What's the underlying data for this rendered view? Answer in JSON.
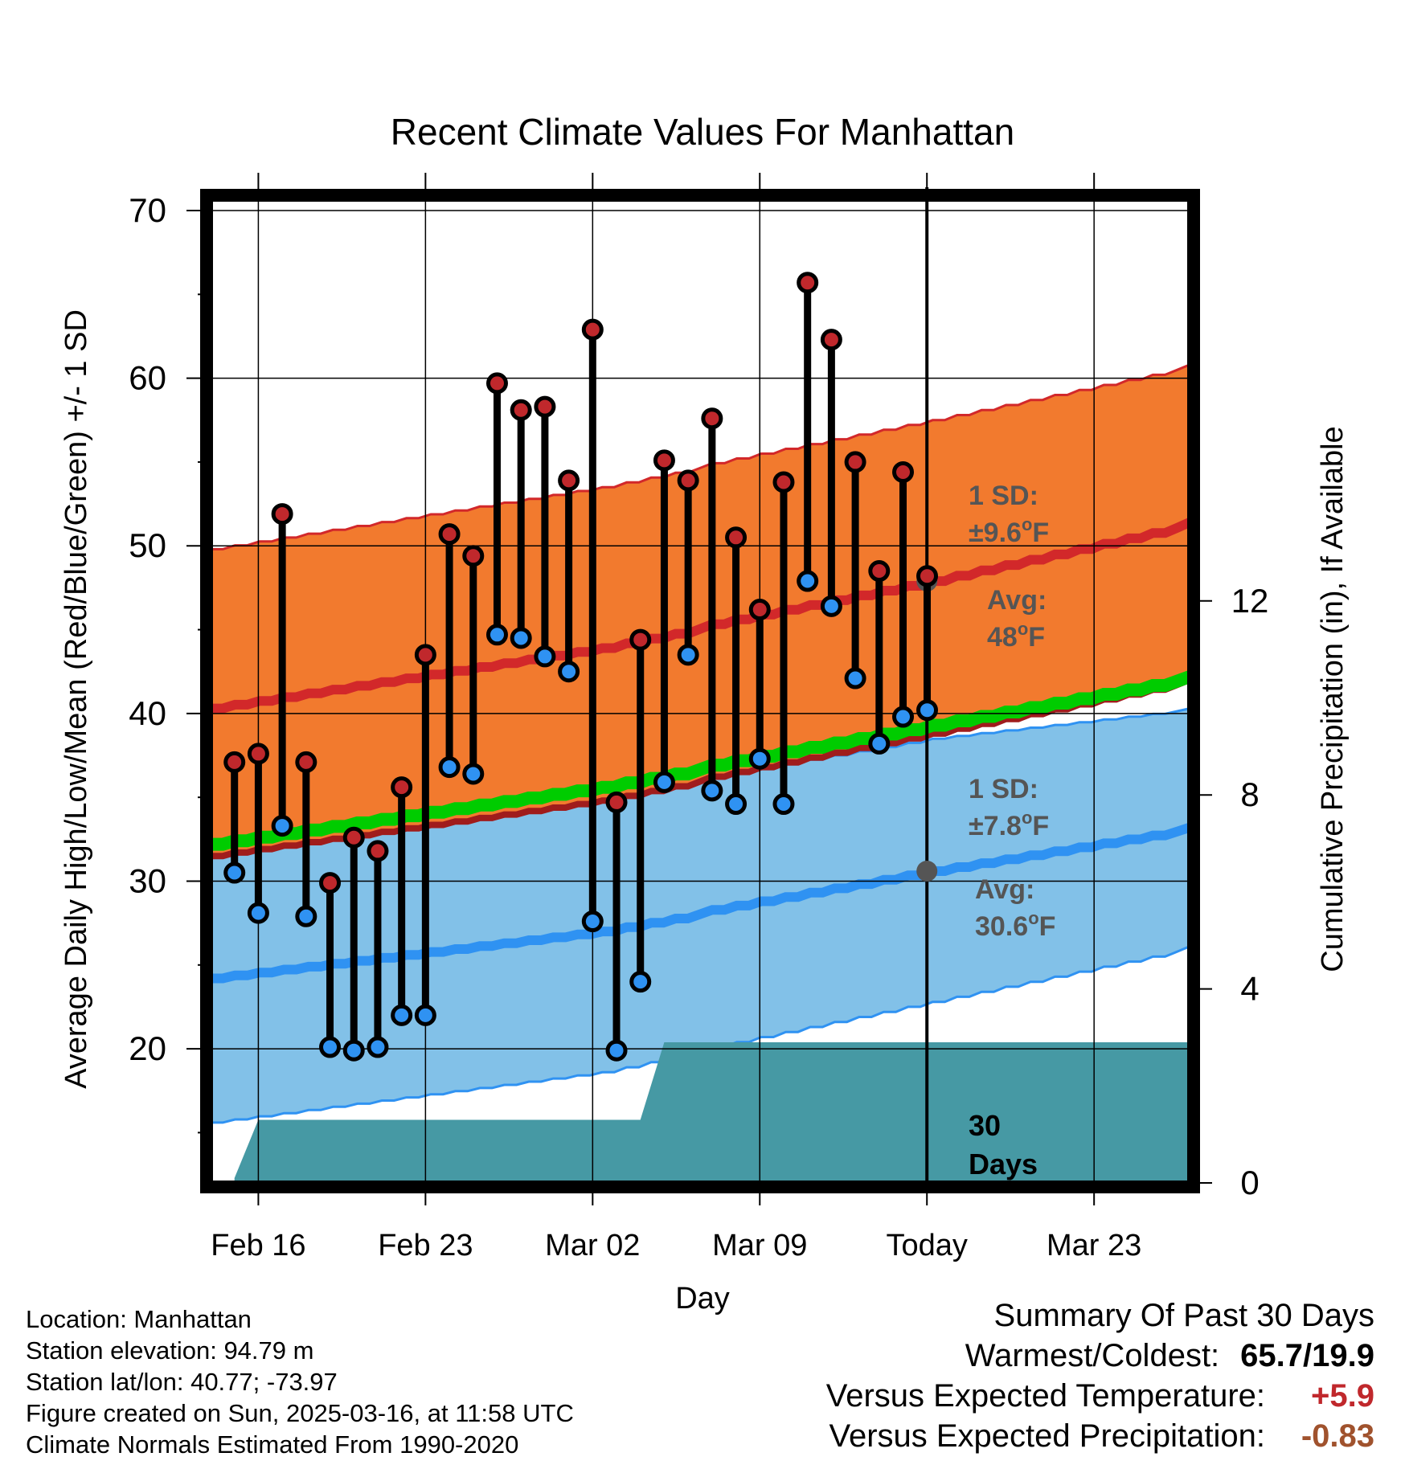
{
  "chart_data": {
    "type": "line",
    "title": "Recent Climate Values For Manhattan",
    "xlabel": "Day",
    "ylabel": "Average Daily High/Low/Mean (Red/Blue/Green) +/- 1 SD",
    "ylabel_right": "Cumulative Precipitation (in), If Available",
    "x_domain": [
      "2025-02-14",
      "2025-03-27"
    ],
    "ylim": [
      12,
      70
    ],
    "y2lim": [
      0,
      20
    ],
    "y_ticks": [
      20,
      30,
      40,
      50,
      60,
      70
    ],
    "y2_ticks": [
      0,
      4,
      8,
      12
    ],
    "x_ticks": [
      {
        "date": "2025-02-16",
        "label": "Feb 16"
      },
      {
        "date": "2025-02-23",
        "label": "Feb 23"
      },
      {
        "date": "2025-03-02",
        "label": "Mar 02"
      },
      {
        "date": "2025-03-09",
        "label": "Mar 09"
      },
      {
        "date": "2025-03-16",
        "label": "Today"
      },
      {
        "date": "2025-03-23",
        "label": "Mar 23"
      }
    ],
    "today": "2025-03-16",
    "grid": true,
    "normals": {
      "high_avg": {
        "dates": [
          "2025-02-14",
          "2025-03-02",
          "2025-03-16",
          "2025-03-27"
        ],
        "values": [
          40.3,
          43.9,
          47.9,
          51.4
        ]
      },
      "high_upper": {
        "dates": [
          "2025-02-14",
          "2025-03-02",
          "2025-03-16",
          "2025-03-27"
        ],
        "values": [
          49.8,
          53.5,
          57.5,
          60.8
        ]
      },
      "high_lower": {
        "dates": [
          "2025-02-14",
          "2025-03-02",
          "2025-03-16",
          "2025-03-27"
        ],
        "values": [
          31.5,
          34.8,
          38.8,
          42.0
        ]
      },
      "low_avg": {
        "dates": [
          "2025-02-14",
          "2025-03-02",
          "2025-03-16",
          "2025-03-27"
        ],
        "values": [
          24.2,
          27.0,
          30.6,
          33.2
        ]
      },
      "low_upper": {
        "dates": [
          "2025-02-14",
          "2025-03-02",
          "2025-03-16",
          "2025-03-27"
        ],
        "values": [
          32.8,
          35.0,
          38.5,
          40.3
        ]
      },
      "low_lower": {
        "dates": [
          "2025-02-14",
          "2025-03-02",
          "2025-03-16",
          "2025-03-27"
        ],
        "values": [
          15.6,
          18.6,
          22.8,
          26.1
        ]
      },
      "mean_avg": {
        "dates": [
          "2025-02-14",
          "2025-03-02",
          "2025-03-16",
          "2025-03-27"
        ],
        "values": [
          32.2,
          35.6,
          39.3,
          42.2
        ]
      }
    },
    "series": [
      {
        "name": "High",
        "color": "#c0282c",
        "dates": [
          "2025-02-15",
          "2025-02-16",
          "2025-02-17",
          "2025-02-18",
          "2025-02-19",
          "2025-02-20",
          "2025-02-21",
          "2025-02-22",
          "2025-02-23",
          "2025-02-24",
          "2025-02-25",
          "2025-02-26",
          "2025-02-27",
          "2025-02-28",
          "2025-03-01",
          "2025-03-02",
          "2025-03-03",
          "2025-03-04",
          "2025-03-05",
          "2025-03-06",
          "2025-03-07",
          "2025-03-08",
          "2025-03-09",
          "2025-03-10",
          "2025-03-11",
          "2025-03-12",
          "2025-03-13",
          "2025-03-14",
          "2025-03-15"
        ],
        "values": [
          37.1,
          37.6,
          51.9,
          37.1,
          29.9,
          32.6,
          31.8,
          35.6,
          43.5,
          50.7,
          49.4,
          59.7,
          58.1,
          58.3,
          53.9,
          62.9,
          34.7,
          44.4,
          55.1,
          53.9,
          57.6,
          50.5,
          46.2,
          53.8,
          65.7,
          62.3,
          55.0,
          48.5,
          54.4
        ]
      },
      {
        "name": "Low",
        "color": "#2f92f2",
        "dates": [
          "2025-02-15",
          "2025-02-16",
          "2025-02-17",
          "2025-02-18",
          "2025-02-19",
          "2025-02-20",
          "2025-02-21",
          "2025-02-22",
          "2025-02-23",
          "2025-02-24",
          "2025-02-25",
          "2025-02-26",
          "2025-02-27",
          "2025-02-28",
          "2025-03-01",
          "2025-03-02",
          "2025-03-03",
          "2025-03-04",
          "2025-03-05",
          "2025-03-06",
          "2025-03-07",
          "2025-03-08",
          "2025-03-09",
          "2025-03-10",
          "2025-03-11",
          "2025-03-12",
          "2025-03-13",
          "2025-03-14",
          "2025-03-15"
        ],
        "values": [
          30.5,
          28.1,
          33.3,
          27.9,
          20.1,
          19.9,
          20.1,
          22.0,
          22.0,
          36.8,
          36.4,
          44.7,
          44.5,
          43.4,
          42.5,
          27.6,
          19.9,
          24.0,
          35.9,
          43.5,
          35.4,
          34.6,
          37.3,
          34.6,
          47.9,
          46.4,
          42.1,
          38.2,
          39.8
        ]
      },
      {
        "name": "Precipitation",
        "color": "#4699a4",
        "dates": [
          "2025-02-14",
          "2025-02-15",
          "2025-02-15",
          "2025-02-16",
          "2025-03-04",
          "2025-03-05",
          "2025-03-27"
        ],
        "values": [
          0,
          0,
          0.1,
          1.3,
          1.3,
          2.9,
          2.9
        ]
      }
    ],
    "extra_point": {
      "date": "2025-03-15",
      "low": 40.2,
      "high": 48.2
    },
    "annotations": {
      "high_sd": "1 SD:",
      "high_sd_val": "±9.6",
      "high_avg_label": "Avg:",
      "high_avg_val": "48",
      "low_sd": "1 SD:",
      "low_sd_val": "±7.8",
      "low_avg_label": "Avg:",
      "low_avg_val": "30.6",
      "deg": "o",
      "unit": "F",
      "days_num": "30",
      "days_word": "Days"
    },
    "colors": {
      "high_band": "#f27a2e",
      "high_line": "#d2282a",
      "low_band": "#82c1e8",
      "low_line": "#2f92f2",
      "mean_line": "#00cc00",
      "precip": "#4699a4",
      "annotation": "#555555"
    }
  },
  "footer": {
    "location": "Location: Manhattan",
    "elevation": "Station elevation: 94.79 m",
    "latlon": "Station lat/lon: 40.77; -73.97",
    "created": "Figure created on Sun, 2025-03-16, at 11:58 UTC",
    "normals": "Climate Normals Estimated From 1990-2020"
  },
  "summary": {
    "title": "Summary Of Past 30 Days",
    "warmest_label": "Warmest/Coldest:",
    "warmest_value": "65.7/19.9",
    "temp_label": "Versus Expected Temperature:",
    "temp_value": "+5.9",
    "temp_color": "#c0282c",
    "precip_label": "Versus Expected Precipitation:",
    "precip_value": "-0.83",
    "precip_color": "#a0522d"
  }
}
